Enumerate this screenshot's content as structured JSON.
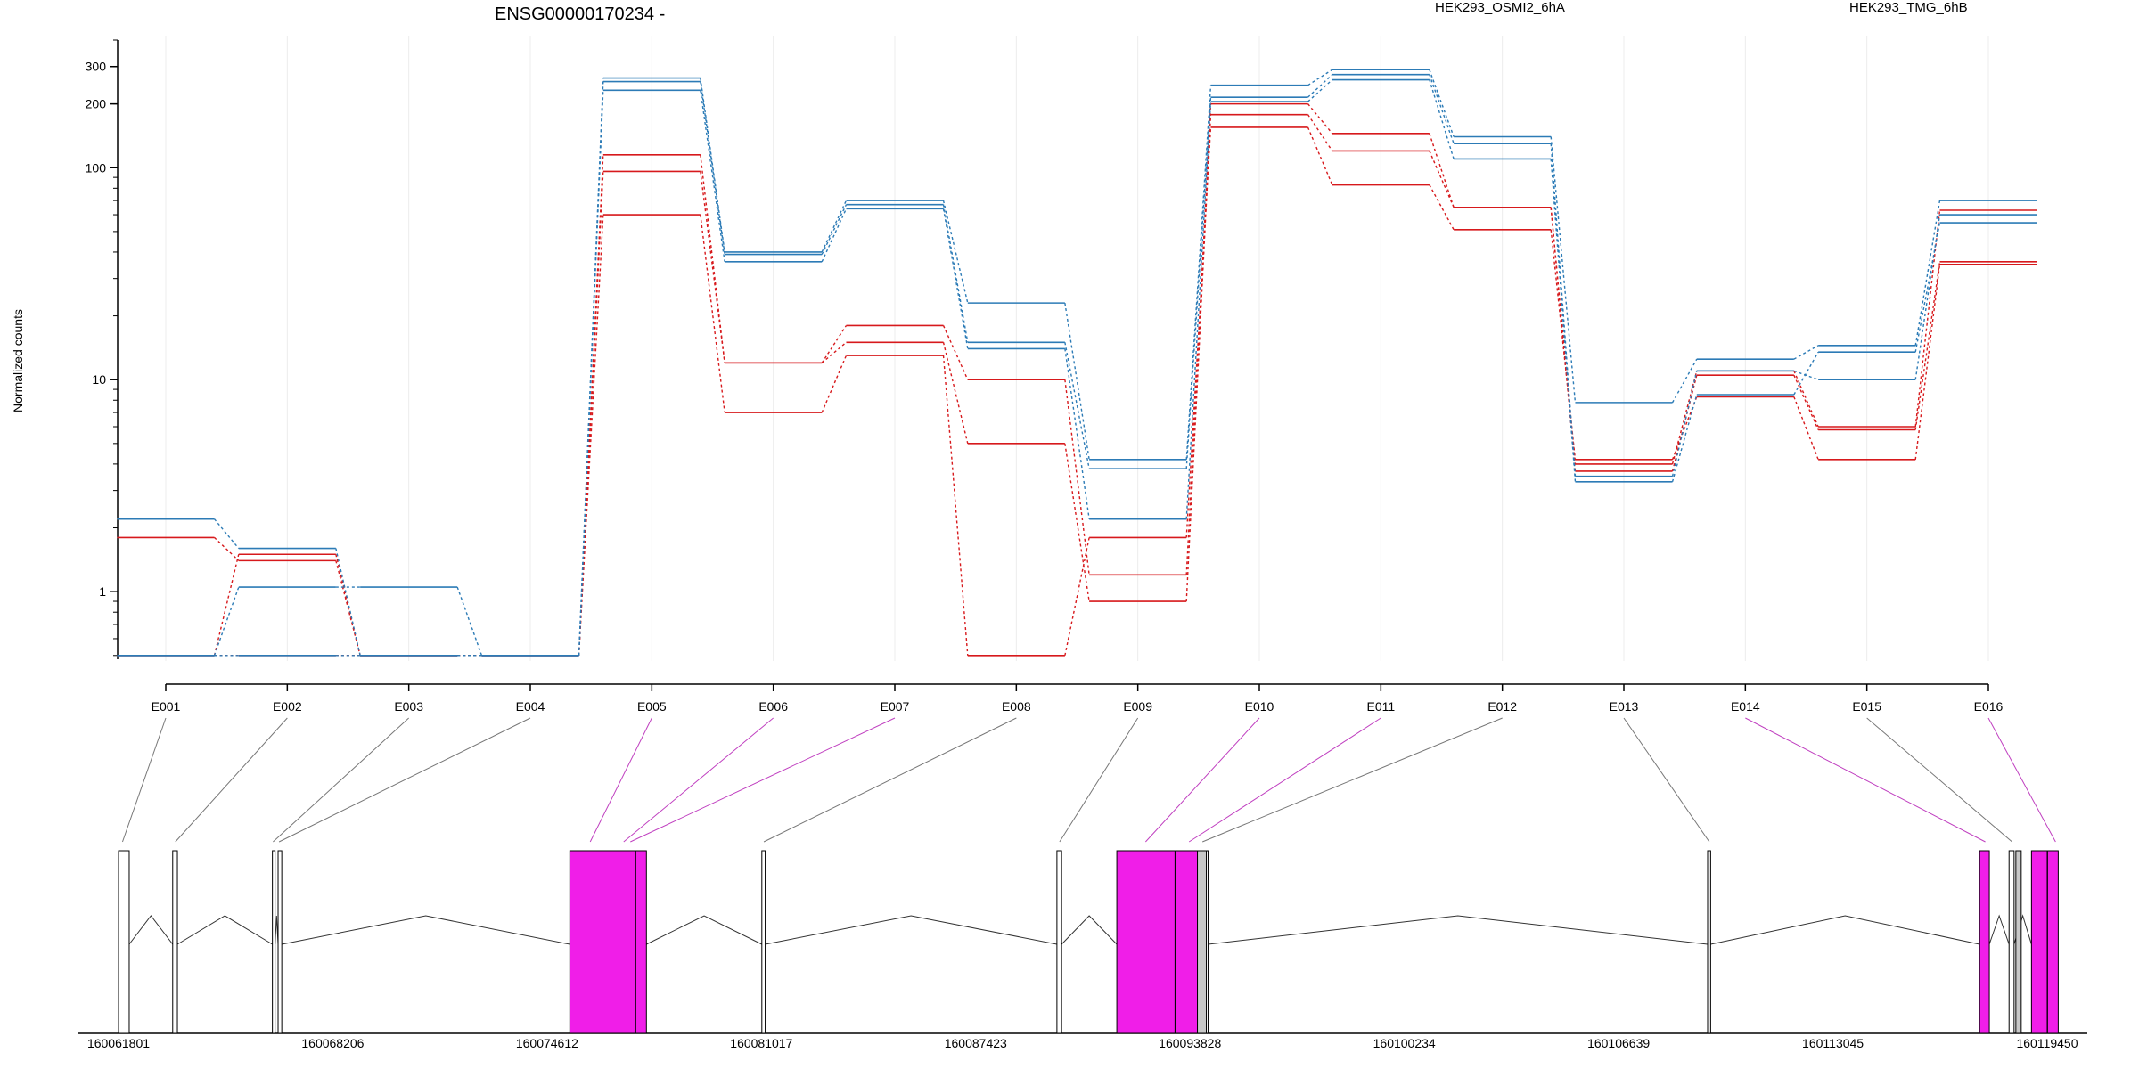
{
  "chart_data": {
    "type": "line",
    "title": "ENSG00000170234 -",
    "ylabel": "Normalized counts",
    "yscale": "log",
    "ylim": [
      0.48,
      400
    ],
    "y_ticks": [
      1,
      10,
      100,
      200,
      300
    ],
    "y_tick_labels": [
      "1",
      "10",
      "100",
      "200",
      "300"
    ],
    "grid": "vertical lines at each exon",
    "legend_position": "top",
    "legend": [
      {
        "label": "HEK293_OSMI2_6hA",
        "color": "#d7191c"
      },
      {
        "label": "HEK293_TMG_6hB",
        "color": "#2c7bb6"
      }
    ],
    "categories": [
      "E001",
      "E002",
      "E003",
      "E004",
      "E005",
      "E006",
      "E007",
      "E008",
      "E009",
      "E010",
      "E011",
      "E012",
      "E013",
      "E014",
      "E015",
      "E016"
    ],
    "series": [
      {
        "group": "HEK293_OSMI2_6hA",
        "color": "#d7191c",
        "values": [
          0.5,
          1.5,
          0.5,
          0.5,
          115,
          12,
          18,
          10,
          1.2,
          200,
          145,
          65,
          4.0,
          11,
          6.0,
          63
        ]
      },
      {
        "group": "HEK293_OSMI2_6hA",
        "color": "#d7191c",
        "values": [
          1.8,
          1.4,
          0.5,
          0.5,
          96,
          12,
          15,
          5.0,
          0.9,
          178,
          120,
          65,
          3.7,
          10.5,
          5.8,
          36
        ]
      },
      {
        "group": "HEK293_OSMI2_6hA",
        "color": "#d7191c",
        "values": [
          0.5,
          0.5,
          0.5,
          0.5,
          60,
          7.0,
          13,
          0.5,
          1.8,
          155,
          83,
          51,
          4.2,
          8.3,
          4.2,
          35
        ]
      },
      {
        "group": "HEK293_TMG_6hB",
        "color": "#2c7bb6",
        "values": [
          2.2,
          1.6,
          0.5,
          0.5,
          265,
          40,
          70,
          23,
          4.2,
          245,
          290,
          140,
          7.8,
          12.5,
          14.5,
          70
        ]
      },
      {
        "group": "HEK293_TMG_6hB",
        "color": "#2c7bb6",
        "values": [
          0.5,
          0.5,
          0.5,
          0.5,
          255,
          39,
          67,
          15,
          3.8,
          215,
          275,
          130,
          3.5,
          11,
          10,
          60
        ]
      },
      {
        "group": "HEK293_TMG_6hB",
        "color": "#2c7bb6",
        "values": [
          0.5,
          1.05,
          1.05,
          0.5,
          232,
          36,
          64,
          14,
          2.2,
          205,
          260,
          110,
          3.3,
          8.5,
          13.5,
          55
        ]
      }
    ],
    "gene_model": {
      "coordinate_ticks": [
        "160061801",
        "160068206",
        "160074612",
        "160081017",
        "160087423",
        "160093828",
        "160100234",
        "160106639",
        "160113045",
        "160119450"
      ],
      "exons": [
        {
          "id": "E001",
          "start": 160061801,
          "end": 160062120,
          "highlighted": false
        },
        {
          "id": "E002",
          "start": 160063420,
          "end": 160063560,
          "highlighted": false
        },
        {
          "id": "E003",
          "start": 160066400,
          "end": 160066480,
          "highlighted": false
        },
        {
          "id": "E004",
          "start": 160066570,
          "end": 160066680,
          "highlighted": false
        },
        {
          "id": "E005",
          "start": 160075290,
          "end": 160077240,
          "highlighted": true
        },
        {
          "id": "E006",
          "start": 160077260,
          "end": 160077580,
          "highlighted": true
        },
        {
          "id": "E007",
          "start": 160081030,
          "end": 160081130,
          "highlighted": false
        },
        {
          "id": "E008",
          "start": 160089850,
          "end": 160089990,
          "highlighted": false
        },
        {
          "id": "E009",
          "start": 160091640,
          "end": 160093380,
          "highlighted": true
        },
        {
          "id": "E010",
          "start": 160093400,
          "end": 160094050,
          "highlighted": true
        },
        {
          "id": "E011",
          "start": 160094070,
          "end": 160094370,
          "highlighted": false
        },
        {
          "id": "E012",
          "start": 160109300,
          "end": 160109390,
          "highlighted": false
        },
        {
          "id": "E013",
          "start": 160117430,
          "end": 160117720,
          "highlighted": true
        },
        {
          "id": "E014",
          "start": 160118310,
          "end": 160118460,
          "highlighted": false
        },
        {
          "id": "E015",
          "start": 160118980,
          "end": 160119450,
          "highlighted": true
        },
        {
          "id": "E016",
          "start": 160119460,
          "end": 160119780,
          "highlighted": true
        }
      ],
      "connector_targets": [
        {
          "exon": "E001",
          "coord": 160061920,
          "color": "#777777"
        },
        {
          "exon": "E002",
          "coord": 160063500,
          "color": "#777777"
        },
        {
          "exon": "E003",
          "coord": 160066420,
          "color": "#777777"
        },
        {
          "exon": "E004",
          "coord": 160066600,
          "color": "#777777"
        },
        {
          "exon": "E005",
          "coord": 160075900,
          "color": "#c040c0"
        },
        {
          "exon": "E006",
          "coord": 160076900,
          "color": "#c040c0"
        },
        {
          "exon": "E007",
          "coord": 160077100,
          "color": "#c040c0"
        },
        {
          "exon": "E008",
          "coord": 160081090,
          "color": "#777777"
        },
        {
          "exon": "E009",
          "coord": 160089930,
          "color": "#777777"
        },
        {
          "exon": "E010",
          "coord": 160092500,
          "color": "#c040c0"
        },
        {
          "exon": "E011",
          "coord": 160093800,
          "color": "#c040c0"
        },
        {
          "exon": "E012",
          "coord": 160094200,
          "color": "#777777"
        },
        {
          "exon": "E013",
          "coord": 160109350,
          "color": "#777777"
        },
        {
          "exon": "E014",
          "coord": 160117600,
          "color": "#c040c0"
        },
        {
          "exon": "E015",
          "coord": 160118400,
          "color": "#777777"
        },
        {
          "exon": "E016",
          "coord": 160119700,
          "color": "#c040c0"
        }
      ]
    }
  }
}
